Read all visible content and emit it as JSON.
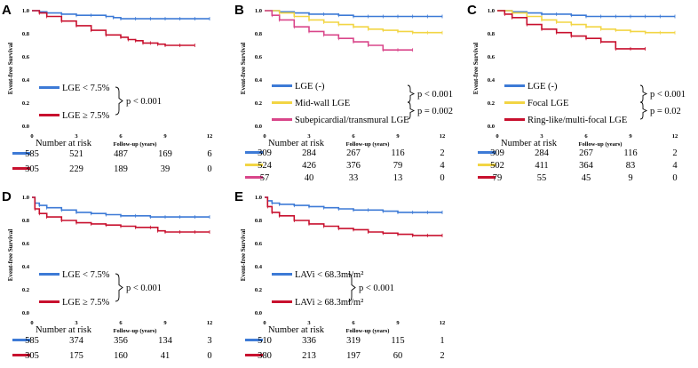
{
  "colors": {
    "blue": "#3d7ad6",
    "red": "#c8102e",
    "yellow": "#f2d544",
    "pink": "#d9468a",
    "gray": "#9aa4b0"
  },
  "chart_data": [
    {
      "id": "A",
      "type": "line",
      "panel_label": "A",
      "ylabel": "Event-free Survival",
      "xlabel": "Follow-up (years)",
      "xlim": [
        0,
        12
      ],
      "ylim": [
        0,
        1
      ],
      "xticks": [
        "0",
        "3",
        "6",
        "9",
        "12"
      ],
      "yticks": [
        "0.0",
        "0.2",
        "0.4",
        "0.6",
        "0.8",
        "1.0"
      ],
      "series": [
        {
          "name": "LGE < 7.5%",
          "legend": "LGE < 7.5%",
          "color": "blue",
          "x": [
            0,
            0.5,
            1,
            2,
            3,
            4,
            5,
            5.5,
            6,
            7,
            8,
            9,
            10,
            11,
            12
          ],
          "y": [
            1,
            0.99,
            0.98,
            0.97,
            0.96,
            0.96,
            0.95,
            0.94,
            0.93,
            0.93,
            0.93,
            0.93,
            0.93,
            0.93,
            0.93
          ],
          "risk": [
            "585",
            "521",
            "487",
            "169",
            "6"
          ]
        },
        {
          "name": "LGE ≥ 7.5%",
          "legend": "LGE ≥ 7.5%",
          "color": "red",
          "x": [
            0,
            0.5,
            1,
            2,
            3,
            4,
            5,
            6,
            6.5,
            7,
            7.5,
            8,
            8.5,
            9,
            10,
            11
          ],
          "y": [
            1,
            0.98,
            0.95,
            0.91,
            0.87,
            0.83,
            0.79,
            0.77,
            0.75,
            0.74,
            0.72,
            0.72,
            0.71,
            0.7,
            0.7,
            0.7
          ],
          "risk": [
            "305",
            "229",
            "189",
            "39",
            "0"
          ]
        }
      ],
      "pvalues": [
        "p < 0.001"
      ],
      "number_at_risk_label": "Number at risk"
    },
    {
      "id": "B",
      "type": "line",
      "panel_label": "B",
      "ylabel": "Event-free Survival",
      "xlabel": "Follow-up (years)",
      "xlim": [
        0,
        12
      ],
      "ylim": [
        0,
        1
      ],
      "xticks": [
        "0",
        "3",
        "6",
        "9",
        "12"
      ],
      "yticks": [
        "0.0",
        "0.2",
        "0.4",
        "0.6",
        "0.8",
        "1.0"
      ],
      "series": [
        {
          "name": "LGE (-)",
          "legend": "LGE (-)",
          "color": "blue",
          "x": [
            0,
            1,
            2,
            3,
            4,
            5,
            6,
            7,
            8,
            9,
            10,
            11,
            12
          ],
          "y": [
            1,
            0.99,
            0.98,
            0.97,
            0.97,
            0.96,
            0.95,
            0.95,
            0.95,
            0.95,
            0.95,
            0.95,
            0.95
          ],
          "risk": [
            "309",
            "284",
            "267",
            "116",
            "2"
          ]
        },
        {
          "name": "Mid-wall LGE",
          "legend": "Mid-wall LGE",
          "color": "yellow",
          "x": [
            0,
            1,
            2,
            3,
            4,
            5,
            6,
            7,
            8,
            9,
            10,
            11,
            12
          ],
          "y": [
            1,
            0.98,
            0.95,
            0.92,
            0.9,
            0.88,
            0.86,
            0.84,
            0.83,
            0.82,
            0.81,
            0.81,
            0.81
          ],
          "risk": [
            "524",
            "426",
            "376",
            "79",
            "4"
          ]
        },
        {
          "name": "Subepicardial/transmural LGE",
          "legend": "Subepicardial/transmural  LGE",
          "color": "pink",
          "x": [
            0,
            0.5,
            1,
            2,
            3,
            4,
            5,
            6,
            7,
            8,
            9,
            10
          ],
          "y": [
            1,
            0.96,
            0.92,
            0.86,
            0.82,
            0.79,
            0.76,
            0.73,
            0.7,
            0.66,
            0.66,
            0.66
          ],
          "risk": [
            "57",
            "40",
            "33",
            "13",
            "0"
          ]
        }
      ],
      "pvalues": [
        "p < 0.001",
        "p = 0.002"
      ],
      "number_at_risk_label": "Number at risk"
    },
    {
      "id": "C",
      "type": "line",
      "panel_label": "C",
      "ylabel": "Event-free Survival",
      "xlabel": "Follow-up (years)",
      "xlim": [
        0,
        12
      ],
      "ylim": [
        0,
        1
      ],
      "xticks": [
        "0",
        "3",
        "6",
        "9",
        "12"
      ],
      "yticks": [
        "0.0",
        "0.2",
        "0.4",
        "0.6",
        "0.8",
        "1.0"
      ],
      "series": [
        {
          "name": "LGE (-)",
          "legend": "LGE (-)",
          "color": "blue",
          "x": [
            0,
            1,
            2,
            3,
            4,
            5,
            6,
            7,
            8,
            9,
            10,
            11,
            12
          ],
          "y": [
            1,
            0.99,
            0.98,
            0.97,
            0.97,
            0.96,
            0.95,
            0.95,
            0.95,
            0.95,
            0.95,
            0.95,
            0.95
          ],
          "risk": [
            "309",
            "284",
            "267",
            "116",
            "2"
          ]
        },
        {
          "name": "Focal LGE",
          "legend": "Focal LGE",
          "color": "yellow",
          "x": [
            0,
            1,
            2,
            3,
            4,
            5,
            6,
            7,
            8,
            9,
            10,
            11,
            12
          ],
          "y": [
            1,
            0.98,
            0.95,
            0.92,
            0.9,
            0.88,
            0.86,
            0.84,
            0.83,
            0.82,
            0.81,
            0.81,
            0.81
          ],
          "risk": [
            "502",
            "411",
            "364",
            "83",
            "4"
          ]
        },
        {
          "name": "Ring-like/multi-focal LGE",
          "legend": "Ring-like/multi-focal  LGE",
          "color": "red",
          "x": [
            0,
            0.5,
            1,
            2,
            3,
            4,
            5,
            6,
            7,
            8,
            9,
            10
          ],
          "y": [
            1,
            0.97,
            0.94,
            0.88,
            0.84,
            0.81,
            0.78,
            0.76,
            0.73,
            0.67,
            0.67,
            0.67
          ],
          "risk": [
            "79",
            "55",
            "45",
            "9",
            "0"
          ]
        }
      ],
      "pvalues": [
        "p < 0.001",
        "p = 0.02"
      ],
      "number_at_risk_label": "Number at risk"
    },
    {
      "id": "D",
      "type": "line",
      "panel_label": "D",
      "ylabel": "Event-free Survival",
      "xlabel": "Follow-up (years)",
      "xlim": [
        0,
        12
      ],
      "ylim": [
        0,
        1
      ],
      "xticks": [
        "0",
        "3",
        "6",
        "9",
        "12"
      ],
      "yticks": [
        "0.0",
        "0.2",
        "0.4",
        "0.6",
        "0.8",
        "1.0"
      ],
      "series": [
        {
          "name": "LGE < 7.5%",
          "legend": "LGE < 7.5%",
          "color": "blue",
          "x": [
            0,
            0.2,
            0.5,
            1,
            2,
            3,
            4,
            5,
            6,
            7,
            8,
            9,
            10,
            11,
            12
          ],
          "y": [
            1,
            0.95,
            0.93,
            0.91,
            0.89,
            0.87,
            0.86,
            0.85,
            0.84,
            0.84,
            0.83,
            0.83,
            0.83,
            0.83,
            0.83
          ],
          "risk": [
            "585",
            "374",
            "356",
            "134",
            "3"
          ]
        },
        {
          "name": "LGE ≥ 7.5%",
          "legend": "LGE ≥ 7.5%",
          "color": "red",
          "x": [
            0,
            0.2,
            0.5,
            1,
            2,
            3,
            4,
            5,
            6,
            7,
            8,
            8.5,
            9,
            10,
            11,
            12
          ],
          "y": [
            1,
            0.9,
            0.86,
            0.83,
            0.8,
            0.78,
            0.77,
            0.76,
            0.75,
            0.74,
            0.74,
            0.71,
            0.7,
            0.7,
            0.7,
            0.7
          ],
          "risk": [
            "305",
            "175",
            "160",
            "41",
            "0"
          ]
        }
      ],
      "pvalues": [
        "p < 0.001"
      ],
      "number_at_risk_label": "Number at risk"
    },
    {
      "id": "E",
      "type": "line",
      "panel_label": "E",
      "ylabel": "Event-free Survival",
      "xlabel": "Follow-up (years)",
      "xlim": [
        0,
        12
      ],
      "ylim": [
        0,
        1
      ],
      "xticks": [
        "0",
        "3",
        "6",
        "9",
        "12"
      ],
      "yticks": [
        "0.0",
        "0.2",
        "0.4",
        "0.6",
        "0.8",
        "1.0"
      ],
      "series": [
        {
          "name": "LAVi < 68.3ml/m2",
          "legend": "LAVi < 68.3ml/m²",
          "color": "blue",
          "x": [
            0,
            0.2,
            0.5,
            1,
            2,
            3,
            4,
            5,
            6,
            7,
            8,
            9,
            10,
            11,
            12
          ],
          "y": [
            1,
            0.97,
            0.95,
            0.94,
            0.93,
            0.92,
            0.91,
            0.9,
            0.89,
            0.89,
            0.88,
            0.87,
            0.87,
            0.87,
            0.87
          ],
          "risk": [
            "510",
            "336",
            "319",
            "115",
            "1"
          ]
        },
        {
          "name": "LAVi ≥ 68.3ml/m2",
          "legend": "LAVi ≥ 68.3ml/m²",
          "color": "red",
          "x": [
            0,
            0.2,
            0.5,
            1,
            2,
            3,
            4,
            5,
            6,
            7,
            8,
            9,
            10,
            11,
            12
          ],
          "y": [
            1,
            0.92,
            0.87,
            0.84,
            0.8,
            0.77,
            0.75,
            0.73,
            0.72,
            0.7,
            0.69,
            0.68,
            0.67,
            0.67,
            0.67
          ],
          "risk": [
            "380",
            "213",
            "197",
            "60",
            "2"
          ]
        }
      ],
      "pvalues": [
        "p < 0.001"
      ],
      "number_at_risk_label": "Number at risk"
    }
  ]
}
